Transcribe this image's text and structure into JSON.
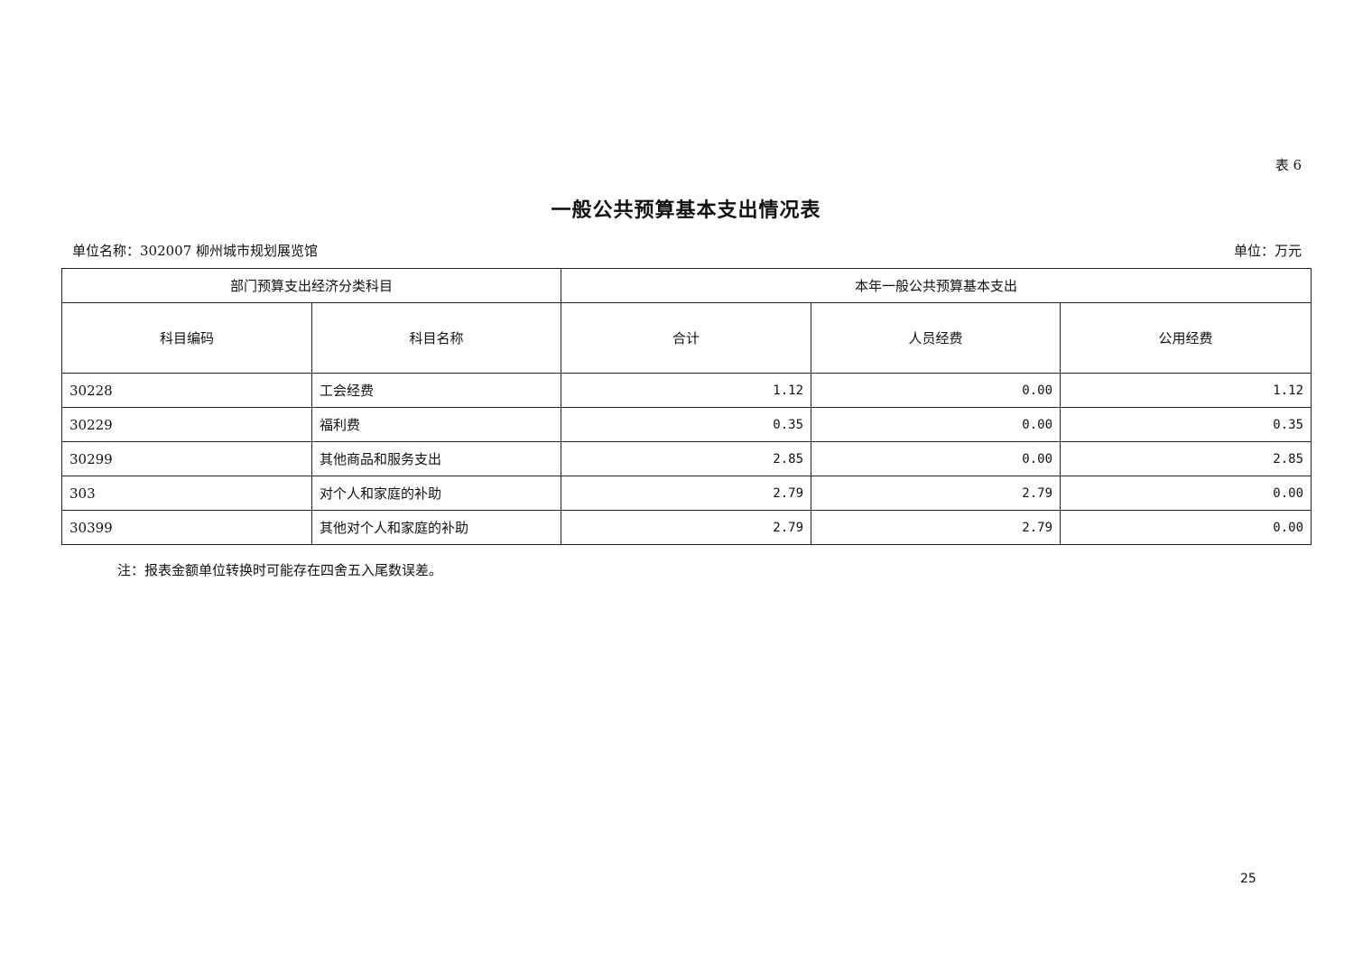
{
  "table_no": "表 6",
  "title": "一般公共预算基本支出情况表",
  "unit_name": "单位名称：302007 柳州城市规划展览馆",
  "unit": "单位：万元",
  "header": {
    "group1": "部门预算支出经济分类科目",
    "group2": "本年一般公共预算基本支出",
    "columns": [
      "科目编码",
      "科目名称",
      "合计",
      "人员经费",
      "公用经费"
    ]
  },
  "rows": [
    {
      "code": "30228",
      "name": "工会经费",
      "total": "1.12",
      "personnel": "0.00",
      "public": "1.12"
    },
    {
      "code": "30229",
      "name": "福利费",
      "total": "0.35",
      "personnel": "0.00",
      "public": "0.35"
    },
    {
      "code": "30299",
      "name": "其他商品和服务支出",
      "total": "2.85",
      "personnel": "0.00",
      "public": "2.85"
    },
    {
      "code": "303",
      "name": "对个人和家庭的补助",
      "total": "2.79",
      "personnel": "2.79",
      "public": "0.00"
    },
    {
      "code": "30399",
      "name": "其他对个人和家庭的补助",
      "total": "2.79",
      "personnel": "2.79",
      "public": "0.00"
    }
  ],
  "note": "注：报表金额单位转换时可能存在四舍五入尾数误差。",
  "page_number": "25"
}
